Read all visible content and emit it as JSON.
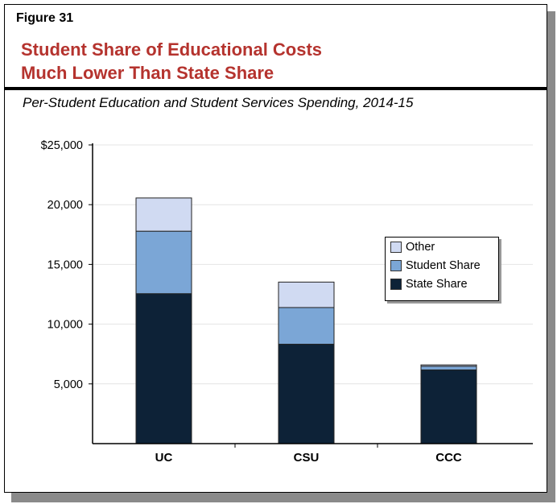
{
  "figure_label": "Figure 31",
  "title_lines": [
    "Student Share of Educational Costs",
    "Much Lower Than State Share"
  ],
  "subtitle": "Per-Student Education and Student Services Spending, 2014-15",
  "chart_data": {
    "type": "bar",
    "stacked": true,
    "categories": [
      "UC",
      "CSU",
      "CCC"
    ],
    "series": [
      {
        "name": "State Share",
        "color": "#0d2237",
        "values": [
          12550,
          8320,
          6170
        ]
      },
      {
        "name": "Student Share",
        "color": "#7ba6d6",
        "values": [
          5230,
          3070,
          310
        ]
      },
      {
        "name": "Other",
        "color": "#d0daf2",
        "values": [
          2780,
          2130,
          110
        ]
      }
    ],
    "ylim": [
      0,
      25000
    ],
    "yticks": [
      5000,
      10000,
      15000,
      20000,
      25000
    ],
    "ytick_labels": [
      "5,000",
      "10,000",
      "15,000",
      "20,000",
      "$25,000"
    ],
    "grid": true,
    "legend_placement": "right",
    "legend_order": [
      "Other",
      "Student Share",
      "State Share"
    ]
  }
}
